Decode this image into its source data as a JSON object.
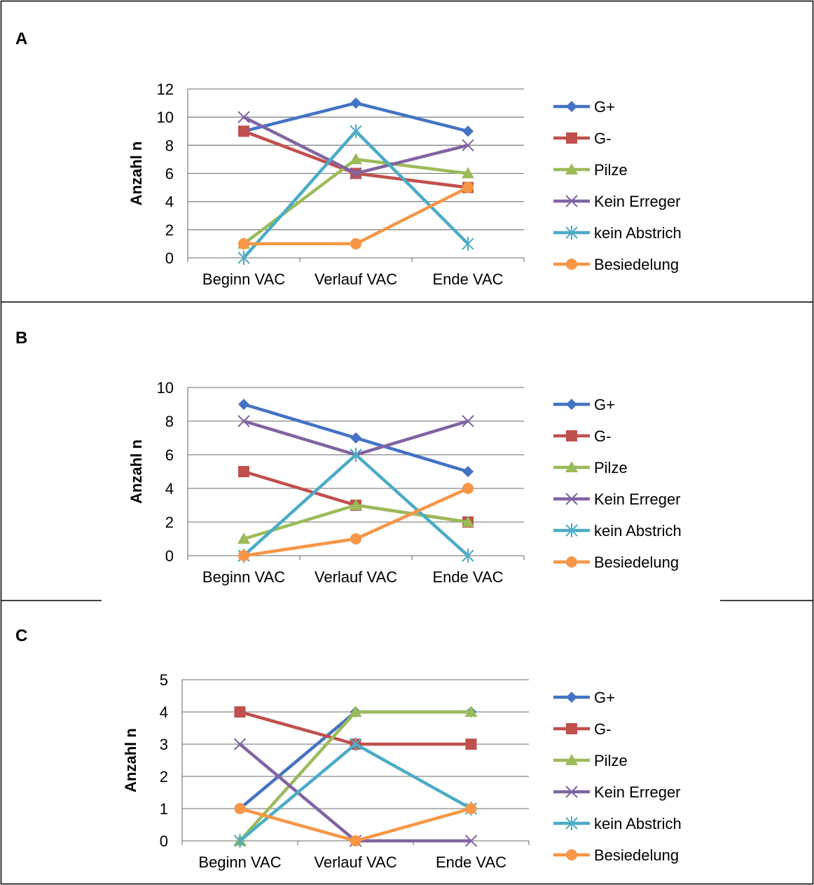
{
  "chart_data": [
    {
      "type": "line",
      "panel_label": "A",
      "categories": [
        "Beginn VAC",
        "Verlauf VAC",
        "Ende VAC"
      ],
      "ylabel": "Anzahl n",
      "ylim": [
        0,
        12
      ],
      "yticks": [
        0,
        2,
        4,
        6,
        8,
        10,
        12
      ],
      "grid": true,
      "legend_position": "right",
      "series": [
        {
          "name": "G+",
          "values": [
            9,
            11,
            9
          ],
          "color": "#4472C4",
          "marker": "diamond"
        },
        {
          "name": "G-",
          "values": [
            9,
            6,
            5
          ],
          "color": "#C0504D",
          "marker": "square"
        },
        {
          "name": "Pilze",
          "values": [
            1,
            7,
            6
          ],
          "color": "#9BBB59",
          "marker": "triangle"
        },
        {
          "name": "Kein Erreger",
          "values": [
            10,
            6,
            8
          ],
          "color": "#8064A2",
          "marker": "x"
        },
        {
          "name": "kein Abstrich",
          "values": [
            0,
            9,
            1
          ],
          "color": "#4BACC6",
          "marker": "star"
        },
        {
          "name": "Besiedelung",
          "values": [
            1,
            1,
            5
          ],
          "color": "#F79646",
          "marker": "circle"
        }
      ]
    },
    {
      "type": "line",
      "panel_label": "B",
      "categories": [
        "Beginn VAC",
        "Verlauf VAC",
        "Ende VAC"
      ],
      "ylabel": "Anzahl n",
      "ylim": [
        0,
        10
      ],
      "yticks": [
        0,
        2,
        4,
        6,
        8,
        10
      ],
      "grid": true,
      "legend_position": "right",
      "series": [
        {
          "name": "G+",
          "values": [
            9,
            7,
            5
          ],
          "color": "#4472C4",
          "marker": "diamond"
        },
        {
          "name": "G-",
          "values": [
            5,
            3,
            2
          ],
          "color": "#C0504D",
          "marker": "square"
        },
        {
          "name": "Pilze",
          "values": [
            1,
            3,
            2
          ],
          "color": "#9BBB59",
          "marker": "triangle"
        },
        {
          "name": "Kein Erreger",
          "values": [
            8,
            6,
            8
          ],
          "color": "#8064A2",
          "marker": "x"
        },
        {
          "name": "kein Abstrich",
          "values": [
            0,
            6,
            0
          ],
          "color": "#4BACC6",
          "marker": "star"
        },
        {
          "name": "Besiedelung",
          "values": [
            0,
            1,
            4
          ],
          "color": "#F79646",
          "marker": "circle"
        }
      ]
    },
    {
      "type": "line",
      "panel_label": "C",
      "categories": [
        "Beginn VAC",
        "Verlauf VAC",
        "Ende VAC"
      ],
      "ylabel": "Anzahl n",
      "ylim": [
        0,
        5
      ],
      "yticks": [
        0,
        1,
        2,
        3,
        4,
        5
      ],
      "grid": true,
      "legend_position": "right",
      "series": [
        {
          "name": "G+",
          "values": [
            1,
            4,
            4
          ],
          "color": "#4472C4",
          "marker": "diamond"
        },
        {
          "name": "G-",
          "values": [
            4,
            3,
            3
          ],
          "color": "#C0504D",
          "marker": "square"
        },
        {
          "name": "Pilze",
          "values": [
            0,
            4,
            4
          ],
          "color": "#9BBB59",
          "marker": "triangle"
        },
        {
          "name": "Kein Erreger",
          "values": [
            3,
            0,
            0
          ],
          "color": "#8064A2",
          "marker": "x"
        },
        {
          "name": "kein Abstrich",
          "values": [
            0,
            3,
            1
          ],
          "color": "#4BACC6",
          "marker": "star"
        },
        {
          "name": "Besiedelung",
          "values": [
            1,
            0,
            1
          ],
          "color": "#F79646",
          "marker": "circle"
        }
      ]
    }
  ]
}
